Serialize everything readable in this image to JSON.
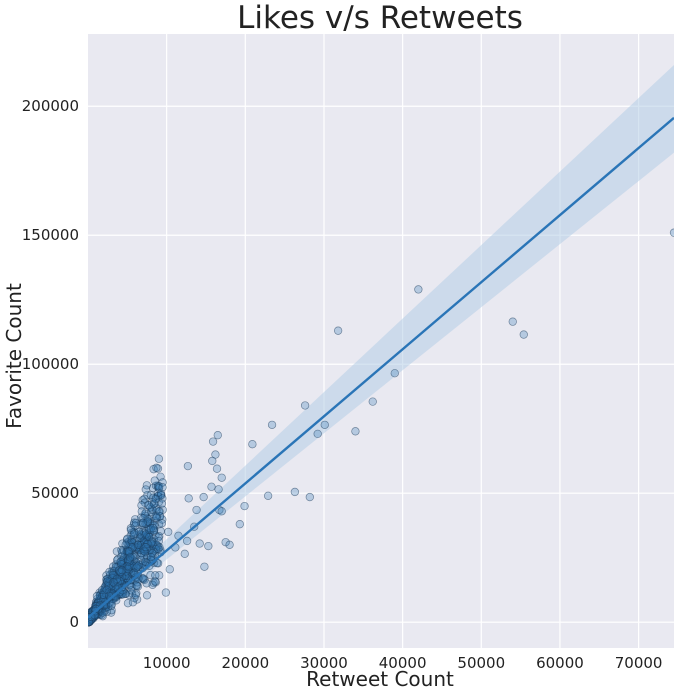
{
  "chart_data": {
    "type": "scatter",
    "title": "Likes v/s Retweets",
    "xlabel": "Retweet Count",
    "ylabel": "Favorite Count",
    "xlim": [
      0,
      74500
    ],
    "ylim": [
      -10000,
      228000
    ],
    "x_ticks": [
      10000,
      20000,
      30000,
      40000,
      50000,
      60000,
      70000
    ],
    "y_ticks": [
      0,
      50000,
      100000,
      150000,
      200000
    ],
    "grid": true,
    "background_color": "#e9e9f1",
    "point_color": "#2d76b4",
    "line_color": "#2a75b7",
    "band_color": "#b4cde6",
    "regression": {
      "x": [
        0,
        74500
      ],
      "y": [
        1800,
        195500
      ],
      "ci_upper": [
        3700,
        216000
      ],
      "ci_lower": [
        -100,
        182000
      ]
    },
    "outliers": [
      {
        "x": 74500,
        "y": 151000
      },
      {
        "x": 42000,
        "y": 129000
      },
      {
        "x": 31800,
        "y": 113000
      },
      {
        "x": 54000,
        "y": 116500
      },
      {
        "x": 55400,
        "y": 111500
      },
      {
        "x": 39000,
        "y": 96500
      },
      {
        "x": 27600,
        "y": 84000
      },
      {
        "x": 36200,
        "y": 85500
      },
      {
        "x": 23400,
        "y": 76500
      },
      {
        "x": 30100,
        "y": 76500
      },
      {
        "x": 29200,
        "y": 73000
      },
      {
        "x": 34000,
        "y": 74000
      },
      {
        "x": 16500,
        "y": 72500
      },
      {
        "x": 15900,
        "y": 70000
      },
      {
        "x": 20900,
        "y": 69000
      },
      {
        "x": 16200,
        "y": 65000
      },
      {
        "x": 15800,
        "y": 62500
      },
      {
        "x": 12700,
        "y": 60500
      },
      {
        "x": 16400,
        "y": 59500
      },
      {
        "x": 17000,
        "y": 56000
      },
      {
        "x": 15700,
        "y": 52500
      },
      {
        "x": 16600,
        "y": 51500
      },
      {
        "x": 26300,
        "y": 50500
      },
      {
        "x": 22900,
        "y": 49000
      },
      {
        "x": 28200,
        "y": 48500
      },
      {
        "x": 12800,
        "y": 48000
      },
      {
        "x": 14700,
        "y": 48500
      },
      {
        "x": 9400,
        "y": 46000
      },
      {
        "x": 19900,
        "y": 45000
      },
      {
        "x": 16700,
        "y": 43500
      },
      {
        "x": 17000,
        "y": 43000
      },
      {
        "x": 13800,
        "y": 43500
      },
      {
        "x": 19300,
        "y": 38000
      },
      {
        "x": 17500,
        "y": 31000
      },
      {
        "x": 18000,
        "y": 30000
      },
      {
        "x": 15300,
        "y": 29500
      },
      {
        "x": 14800,
        "y": 21500
      },
      {
        "x": 12300,
        "y": 26500
      },
      {
        "x": 10400,
        "y": 20500
      },
      {
        "x": 9900,
        "y": 11500
      },
      {
        "x": 10200,
        "y": 35000
      },
      {
        "x": 11500,
        "y": 33500
      },
      {
        "x": 13500,
        "y": 37000
      },
      {
        "x": 8700,
        "y": 40500
      },
      {
        "x": 9100,
        "y": 43000
      },
      {
        "x": 7600,
        "y": 39000
      },
      {
        "x": 7000,
        "y": 38500
      },
      {
        "x": 11100,
        "y": 29000
      },
      {
        "x": 12600,
        "y": 31500
      },
      {
        "x": 6100,
        "y": 38500
      },
      {
        "x": 14200,
        "y": 30500
      }
    ],
    "cluster": {
      "n": 900,
      "x_max": 9500,
      "slope": 4.2,
      "spread": 0.28,
      "seed": 7
    }
  }
}
